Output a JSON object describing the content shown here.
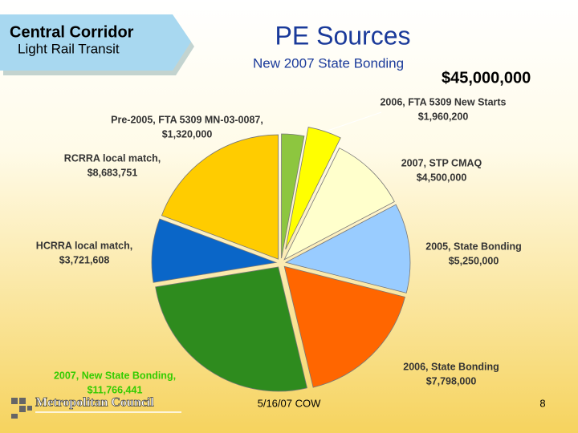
{
  "header": {
    "line1": "Central Corridor",
    "line2": "Light Rail Transit"
  },
  "footer": {
    "logo": "Metropolitan Council",
    "date": "5/16/07 COW",
    "page": "8"
  },
  "chart_data": {
    "type": "pie",
    "title": "PE Sources",
    "subtitle": "New 2007 State Bonding",
    "total_label": "$45,000,000",
    "categories": [
      "Pre-2005, FTA 5309 MN-03-0087,",
      "2006, FTA 5309 New Starts",
      "2007, STP CMAQ",
      "2005, State Bonding",
      "2006, State Bonding",
      "2007, New State Bonding,",
      "HCRRA local match,",
      "RCRRA local match,"
    ],
    "values": [
      1320000,
      1960200,
      4500000,
      5250000,
      7798000,
      11766441,
      3721608,
      8683751
    ],
    "value_labels": [
      "$1,320,000",
      "$1,960,200",
      "$4,500,000",
      "$5,250,000",
      "$7,798,000",
      "$11,766,441",
      "$3,721,608",
      "$8,683,751"
    ],
    "colors": [
      "#8dc63f",
      "#ffff00",
      "#ffffcc",
      "#99ccff",
      "#ff6600",
      "#2e8b1e",
      "#0a66c8",
      "#ffcc00"
    ]
  }
}
